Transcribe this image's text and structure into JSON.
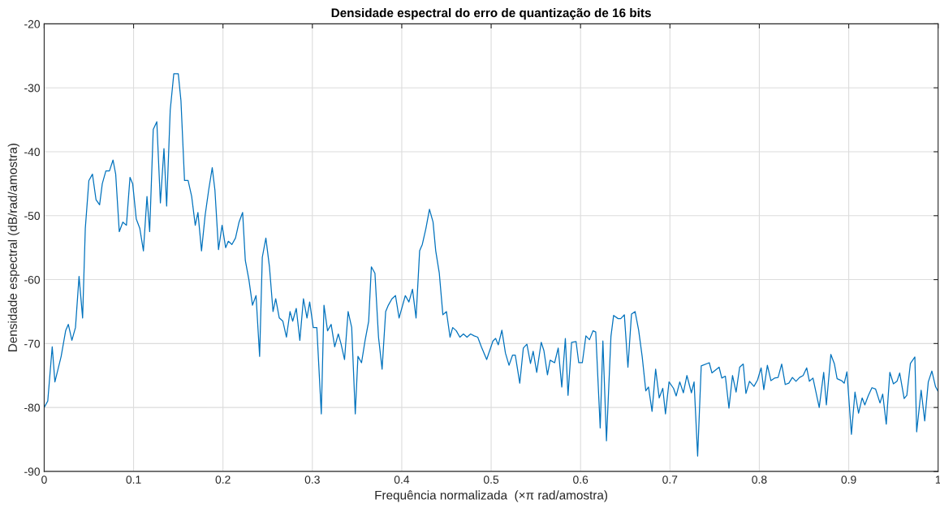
{
  "chart_data": {
    "type": "line",
    "title": "Densidade espectral do erro de quantização de 16 bits",
    "xlabel": "Frequência normalizada  (×π rad/amostra)",
    "ylabel": "Densidade espectral (dB/rad/amostra)",
    "xlim": [
      0,
      1
    ],
    "ylim": [
      -90,
      -20
    ],
    "xticks": [
      0,
      0.1,
      0.2,
      0.3,
      0.4,
      0.5,
      0.6,
      0.7,
      0.8,
      0.9,
      1
    ],
    "yticks": [
      -90,
      -80,
      -70,
      -60,
      -50,
      -40,
      -30,
      -20
    ],
    "grid": true,
    "marker": "none",
    "line_style": "solid",
    "series": [
      {
        "color": "#0072bd",
        "x": [
          0,
          0.004,
          0.009,
          0.012,
          0.019,
          0.024,
          0.027,
          0.031,
          0.035,
          0.039,
          0.043,
          0.046,
          0.05,
          0.054,
          0.058,
          0.062,
          0.065,
          0.069,
          0.073,
          0.077,
          0.08,
          0.084,
          0.088,
          0.092,
          0.096,
          0.099,
          0.103,
          0.107,
          0.111,
          0.115,
          0.118,
          0.122,
          0.126,
          0.13,
          0.134,
          0.137,
          0.141,
          0.145,
          0.15,
          0.153,
          0.157,
          0.161,
          0.165,
          0.169,
          0.172,
          0.176,
          0.18,
          0.184,
          0.188,
          0.191,
          0.195,
          0.199,
          0.203,
          0.206,
          0.21,
          0.214,
          0.218,
          0.222,
          0.225,
          0.229,
          0.233,
          0.237,
          0.241,
          0.244,
          0.248,
          0.252,
          0.256,
          0.259,
          0.263,
          0.267,
          0.271,
          0.275,
          0.278,
          0.282,
          0.286,
          0.29,
          0.294,
          0.297,
          0.301,
          0.305,
          0.31,
          0.313,
          0.317,
          0.321,
          0.325,
          0.329,
          0.332,
          0.336,
          0.34,
          0.344,
          0.348,
          0.351,
          0.355,
          0.359,
          0.363,
          0.366,
          0.37,
          0.374,
          0.378,
          0.382,
          0.385,
          0.389,
          0.393,
          0.397,
          0.401,
          0.404,
          0.408,
          0.412,
          0.416,
          0.42,
          0.423,
          0.427,
          0.431,
          0.435,
          0.438,
          0.442,
          0.446,
          0.45,
          0.454,
          0.457,
          0.461,
          0.465,
          0.469,
          0.473,
          0.477,
          0.481,
          0.485,
          0.489,
          0.495,
          0.502,
          0.505,
          0.508,
          0.512,
          0.516,
          0.52,
          0.524,
          0.527,
          0.532,
          0.536,
          0.54,
          0.544,
          0.547,
          0.551,
          0.556,
          0.559,
          0.563,
          0.566,
          0.571,
          0.575,
          0.579,
          0.583,
          0.586,
          0.59,
          0.595,
          0.598,
          0.602,
          0.606,
          0.61,
          0.614,
          0.617,
          0.622,
          0.625,
          0.629,
          0.634,
          0.637,
          0.642,
          0.645,
          0.649,
          0.653,
          0.657,
          0.661,
          0.665,
          0.669,
          0.673,
          0.676,
          0.68,
          0.684,
          0.688,
          0.692,
          0.695,
          0.699,
          0.704,
          0.707,
          0.711,
          0.715,
          0.719,
          0.724,
          0.727,
          0.731,
          0.735,
          0.744,
          0.747,
          0.755,
          0.758,
          0.762,
          0.766,
          0.77,
          0.774,
          0.778,
          0.782,
          0.785,
          0.789,
          0.794,
          0.798,
          0.802,
          0.805,
          0.809,
          0.813,
          0.817,
          0.821,
          0.825,
          0.829,
          0.833,
          0.837,
          0.841,
          0.845,
          0.849,
          0.853,
          0.856,
          0.86,
          0.867,
          0.872,
          0.875,
          0.88,
          0.884,
          0.887,
          0.892,
          0.895,
          0.898,
          0.903,
          0.907,
          0.911,
          0.915,
          0.918,
          0.922,
          0.926,
          0.93,
          0.935,
          0.938,
          0.942,
          0.946,
          0.95,
          0.954,
          0.957,
          0.962,
          0.965,
          0.969,
          0.974,
          0.976,
          0.981,
          0.985,
          0.989,
          0.993,
          0.997,
          1
        ],
        "values": [
          -80,
          -79,
          -70.5,
          -76,
          -72,
          -68,
          -67,
          -69.5,
          -67.5,
          -59.5,
          -66,
          -52,
          -44.5,
          -43.5,
          -47.5,
          -48.3,
          -45,
          -43,
          -43,
          -41.3,
          -43.5,
          -52.5,
          -51,
          -51.5,
          -44,
          -45,
          -50.5,
          -52,
          -55.5,
          -47,
          -52.5,
          -36.5,
          -35.3,
          -48,
          -39.5,
          -48.5,
          -33.5,
          -27.8,
          -27.8,
          -32,
          -44.5,
          -44.5,
          -47,
          -51.5,
          -49.5,
          -55.5,
          -50,
          -46,
          -42.5,
          -46,
          -55.3,
          -51.5,
          -55,
          -54,
          -54.5,
          -53.5,
          -51,
          -49.5,
          -57,
          -60,
          -64,
          -62.5,
          -72,
          -56.5,
          -53.5,
          -58,
          -65,
          -63,
          -66,
          -66.5,
          -69,
          -65,
          -66.5,
          -64.5,
          -69.5,
          -63,
          -66,
          -63.5,
          -67.5,
          -67.5,
          -81,
          -64,
          -68,
          -67,
          -70.5,
          -68.5,
          -70,
          -72.5,
          -65,
          -67.5,
          -81,
          -72,
          -73,
          -69.5,
          -66.5,
          -58,
          -59,
          -69,
          -74,
          -65,
          -64,
          -63,
          -62.5,
          -66,
          -64,
          -62.5,
          -63.5,
          -61.5,
          -66,
          -55.5,
          -54.5,
          -52,
          -49,
          -51,
          -55.5,
          -59,
          -65.5,
          -65,
          -69,
          -67.5,
          -68,
          -69,
          -68.5,
          -69,
          -68.5,
          -68.8,
          -69,
          -70.5,
          -72.5,
          -69.6,
          -69.2,
          -70.2,
          -67.9,
          -71.5,
          -73.4,
          -71.8,
          -71.8,
          -76.2,
          -70.7,
          -70.1,
          -73.1,
          -71.2,
          -74.5,
          -69.8,
          -71.1,
          -74.9,
          -72.6,
          -73,
          -70.7,
          -76.8,
          -69.2,
          -78.1,
          -69.8,
          -69.7,
          -73,
          -73,
          -68.8,
          -69.4,
          -68,
          -68.2,
          -83.2,
          -69.6,
          -85.2,
          -68.9,
          -65.6,
          -66.1,
          -66.1,
          -65.5,
          -73.7,
          -65.4,
          -65,
          -67.9,
          -72.1,
          -77.4,
          -76.8,
          -80.6,
          -74,
          -78.5,
          -77,
          -81,
          -76,
          -77,
          -78.2,
          -76,
          -77.7,
          -75,
          -77.7,
          -76,
          -87.6,
          -73.5,
          -73,
          -74.6,
          -73.7,
          -75.4,
          -75.1,
          -80.1,
          -75,
          -77.6,
          -73.7,
          -73.2,
          -77.8,
          -75.9,
          -76.7,
          -75.7,
          -73.8,
          -77.2,
          -73.4,
          -75.8,
          -75.4,
          -75.3,
          -73.2,
          -76.4,
          -76.2,
          -75.3,
          -75.9,
          -75.3,
          -75,
          -73.8,
          -75.9,
          -75.4,
          -80,
          -74.5,
          -79.6,
          -71.7,
          -73.2,
          -75.5,
          -75.8,
          -76.2,
          -74.4,
          -84.2,
          -77.6,
          -80.9,
          -78.5,
          -79.6,
          -78.1,
          -76.9,
          -77.1,
          -79.3,
          -77.9,
          -82.6,
          -74.5,
          -76.3,
          -75.9,
          -74.6,
          -78.6,
          -78.1,
          -73.1,
          -72.1,
          -83.8,
          -77.3,
          -82.1,
          -76,
          -74.3,
          -76.7,
          -77.5
        ]
      }
    ]
  }
}
